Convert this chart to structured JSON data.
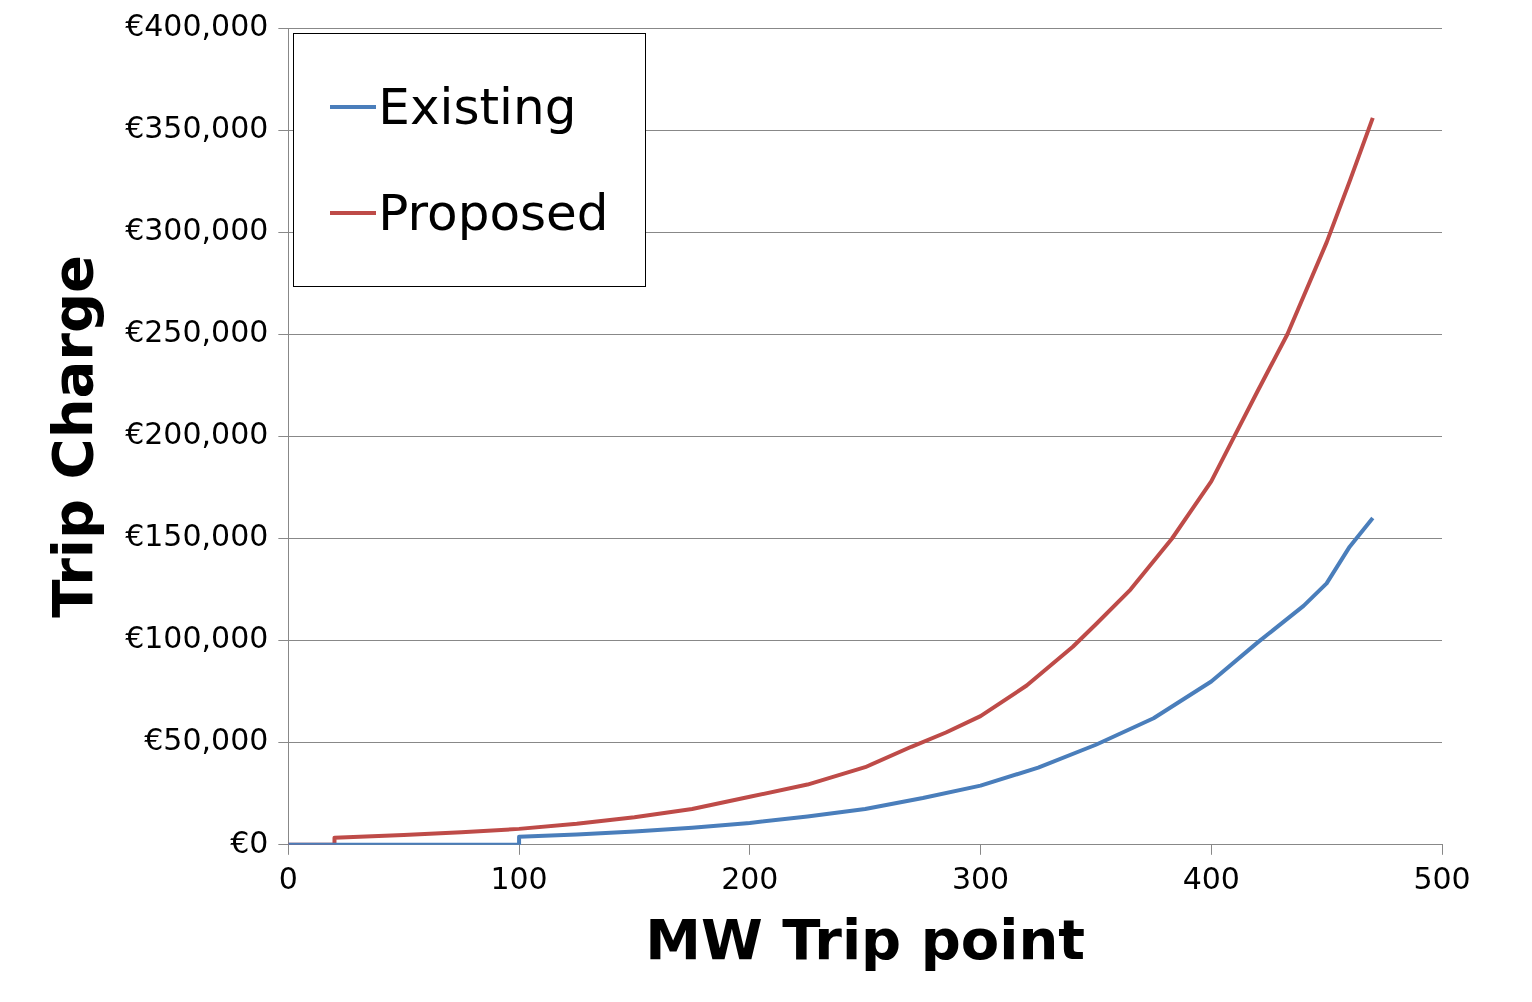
{
  "chart_data": {
    "type": "line",
    "xlabel": "MW Trip point",
    "ylabel": "Trip Charge",
    "xlim": [
      0,
      500
    ],
    "xticks": [
      0,
      100,
      200,
      300,
      400,
      500
    ],
    "ylim": [
      0,
      400000
    ],
    "yticks": [
      {
        "value": 0,
        "label": "€0"
      },
      {
        "value": 50000,
        "label": "€50,000"
      },
      {
        "value": 100000,
        "label": "€100,000"
      },
      {
        "value": 150000,
        "label": "€150,000"
      },
      {
        "value": 200000,
        "label": "€200,000"
      },
      {
        "value": 250000,
        "label": "€250,000"
      },
      {
        "value": 300000,
        "label": "€300,000"
      },
      {
        "value": 350000,
        "label": "€350,000"
      },
      {
        "value": 400000,
        "label": "€400,000"
      }
    ],
    "grid": "y",
    "legend": "top left",
    "marker": "none",
    "line_style": "solid",
    "series": [
      {
        "name": "Existing",
        "color": "#4a7ebb",
        "x": [
          0,
          100,
          100,
          125,
          150,
          175,
          200,
          225,
          250,
          275,
          300,
          325,
          350,
          375,
          400,
          420,
          440,
          450,
          460,
          470
        ],
        "values": [
          0,
          0,
          4000,
          5100,
          6500,
          8400,
          10700,
          13900,
          17500,
          22900,
          29000,
          37800,
          49000,
          62000,
          80000,
          99000,
          117000,
          128000,
          146000,
          160000
        ]
      },
      {
        "name": "Proposed",
        "color": "#be4b48",
        "x": [
          0,
          20,
          20,
          50,
          75,
          100,
          125,
          150,
          175,
          200,
          225,
          250,
          270,
          285,
          300,
          320,
          340,
          350,
          365,
          383,
          400,
          410,
          420,
          433,
          450,
          460,
          470
        ],
        "values": [
          0,
          0,
          3500,
          4800,
          6200,
          7800,
          10300,
          13500,
          17500,
          23500,
          29500,
          38000,
          48000,
          55000,
          63000,
          78000,
          97000,
          108000,
          125000,
          150000,
          178000,
          200000,
          222000,
          250000,
          295000,
          325000,
          356000
        ]
      }
    ]
  }
}
